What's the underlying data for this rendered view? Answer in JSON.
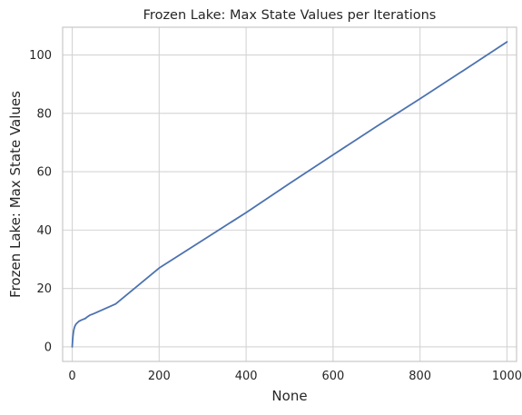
{
  "chart_data": {
    "type": "line",
    "title": "Frozen Lake: Max State Values per Iterations",
    "xlabel": "None",
    "ylabel": "Frozen Lake: Max State Values",
    "xlim": [
      -22,
      1022
    ],
    "ylim": [
      -5,
      109.5
    ],
    "xticks": [
      0,
      200,
      400,
      600,
      800,
      1000
    ],
    "yticks": [
      0,
      20,
      40,
      60,
      80,
      100
    ],
    "grid": true,
    "legend": "none",
    "series": [
      {
        "color": "#4c72b0",
        "x": [
          0,
          1,
          2,
          3,
          4,
          6,
          8,
          10,
          15,
          20,
          25,
          30,
          35,
          40,
          50,
          100,
          200,
          300,
          400,
          500,
          600,
          700,
          800,
          900,
          1000
        ],
        "y": [
          0,
          2.5,
          4.0,
          5.2,
          6.0,
          7.0,
          7.6,
          8.0,
          8.7,
          9.1,
          9.4,
          9.7,
          10.3,
          10.8,
          11.4,
          14.7,
          27.0,
          36.5,
          46.0,
          56.0,
          65.8,
          75.5,
          85.0,
          94.7,
          104.5
        ]
      }
    ]
  }
}
